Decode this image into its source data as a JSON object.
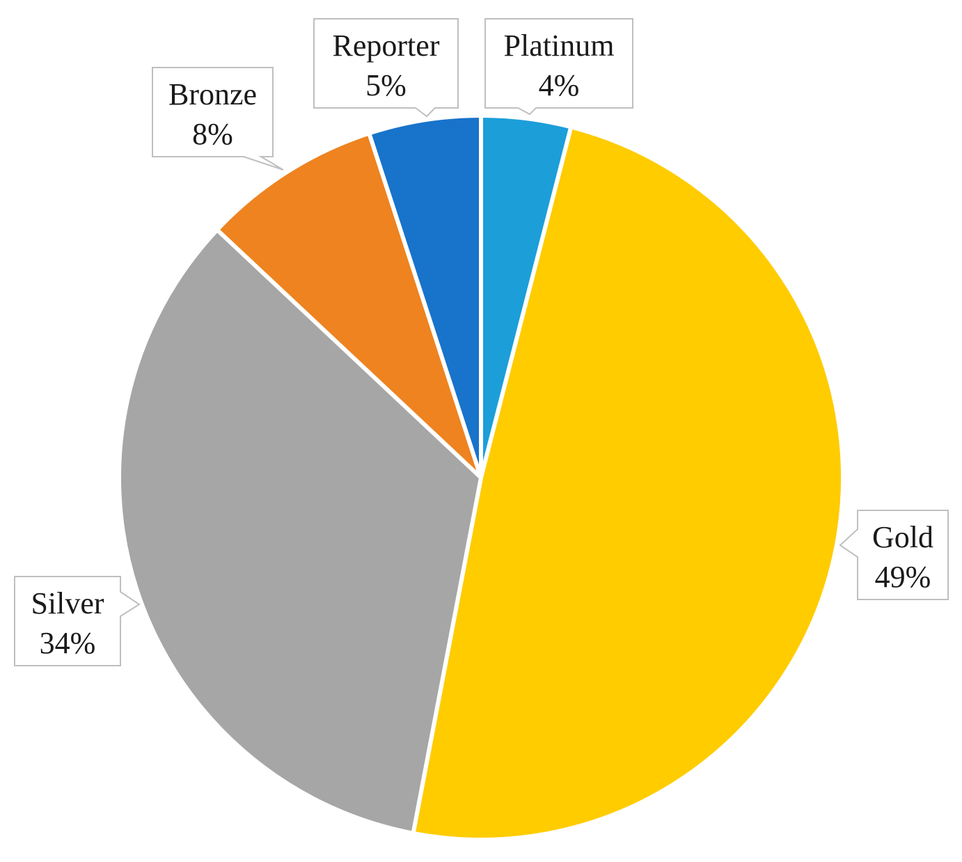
{
  "chart_data": {
    "type": "pie",
    "title": "",
    "slices": [
      {
        "label": "Platinum",
        "value": 4,
        "percent_label": "4%",
        "color": "#1C9ED9"
      },
      {
        "label": "Gold",
        "value": 49,
        "percent_label": "49%",
        "color": "#FFCC00"
      },
      {
        "label": "Silver",
        "value": 34,
        "percent_label": "34%",
        "color": "#A6A6A6"
      },
      {
        "label": "Bronze",
        "value": 8,
        "percent_label": "8%",
        "color": "#EE8320"
      },
      {
        "label": "Reporter",
        "value": 5,
        "percent_label": "5%",
        "color": "#1873CA"
      }
    ],
    "start_angle_deg": 0,
    "direction": "clockwise",
    "data_labels": "callouts with category name and percentage",
    "legend": "none"
  }
}
